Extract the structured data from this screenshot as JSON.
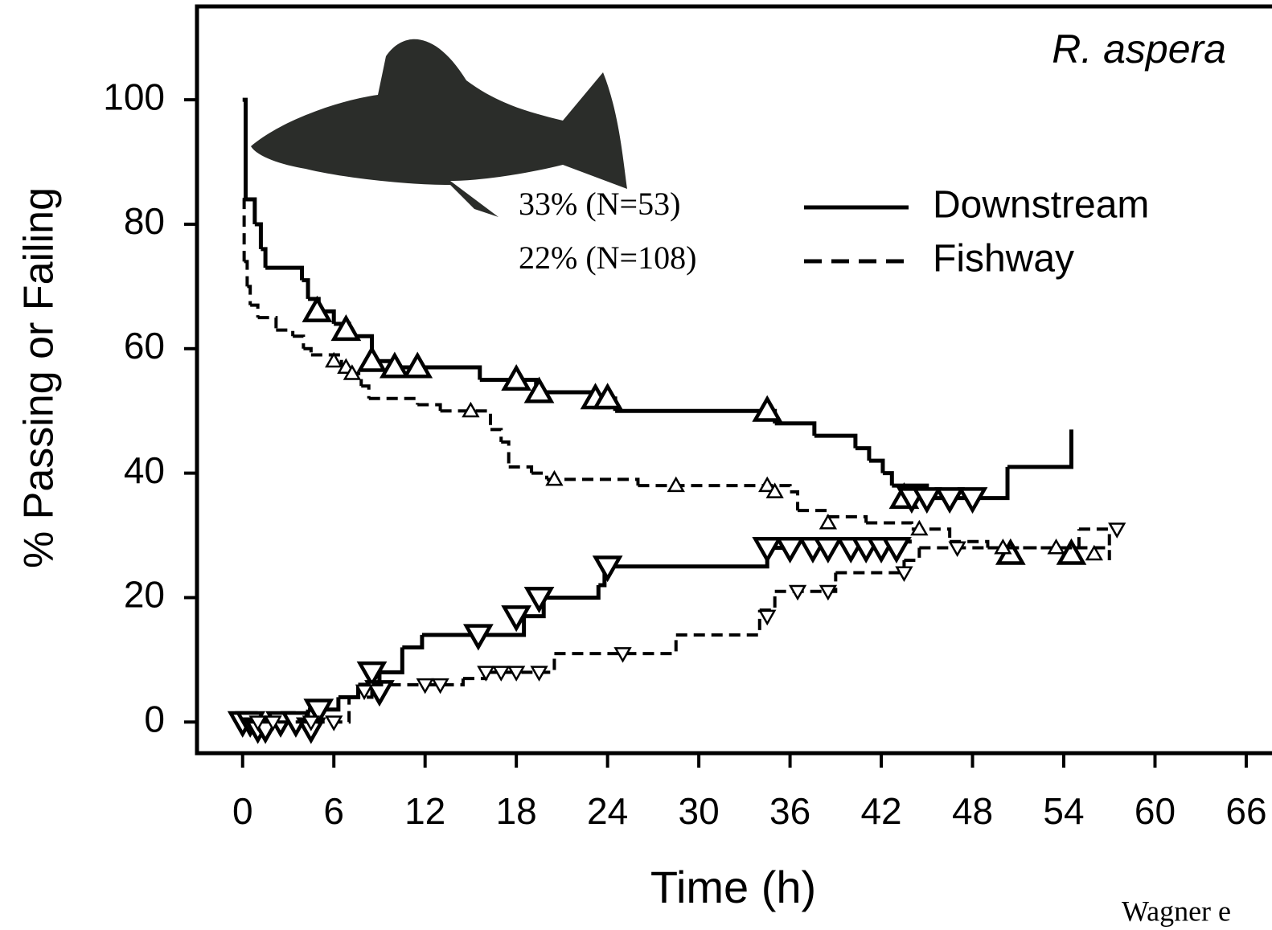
{
  "chart_data": {
    "type": "step",
    "x_label": "Time (h)",
    "y_label": "% Passing or Failing",
    "species": "R. aspera",
    "attribution": "Wagner e",
    "xlim": [
      -3,
      67.8
    ],
    "ylim": [
      -5,
      115
    ],
    "xticks": [
      0,
      6,
      12,
      18,
      24,
      30,
      36,
      42,
      48,
      54,
      60,
      66
    ],
    "yticks": [
      0,
      20,
      40,
      60,
      80,
      100
    ],
    "series": [
      {
        "name": "Downstream",
        "summary": "33% (N=53)",
        "color": "#000000",
        "dashed": false,
        "marker_size": 15,
        "passing": {
          "x": [
            0,
            0.2,
            0.8,
            1.2,
            1.5,
            3.9,
            4.3,
            5,
            6,
            7,
            8.5,
            10,
            15.6,
            19.3,
            23.2,
            24.5,
            35,
            37.6,
            40.3,
            41.2,
            42.1,
            42.7,
            45,
            50.3,
            54.5
          ],
          "values": [
            100,
            84,
            80,
            76,
            73,
            71,
            68,
            66,
            64,
            62,
            58,
            57,
            55,
            53,
            52,
            50,
            48,
            46,
            44,
            42,
            40,
            38,
            36,
            41,
            47
          ]
        },
        "failing": {
          "x": [
            0,
            4.3,
            6.3,
            7.6,
            9,
            10.5,
            11.8,
            18.5,
            19.8,
            23.4,
            23.8,
            34.5,
            35.5,
            44
          ],
          "values": [
            0,
            2,
            4,
            6,
            8,
            12,
            14,
            17,
            20,
            22,
            25,
            28,
            29,
            29
          ]
        },
        "censored_up": {
          "x": [
            4.9,
            6.8,
            8.5,
            10,
            11.5,
            18,
            19.5,
            23.2,
            24,
            34.5,
            43.5,
            50.5,
            54.5
          ],
          "values": [
            66,
            63,
            58,
            57,
            57,
            55,
            53,
            52,
            52,
            50,
            36,
            27,
            27
          ]
        },
        "censored_down": {
          "x": [
            0,
            0.5,
            1,
            1.5,
            2.5,
            3.5,
            4.5,
            5,
            8.5,
            9,
            15.5,
            18,
            19.5,
            24,
            34.5,
            36,
            37.5,
            38.5,
            40,
            41,
            42,
            43,
            44,
            45,
            46.5,
            48
          ],
          "values": [
            0,
            0,
            -1,
            -1,
            0,
            0,
            -1,
            2,
            8,
            5,
            14,
            17,
            20,
            25,
            28,
            28,
            28,
            28,
            28,
            28,
            28,
            28,
            36,
            36,
            36,
            36
          ]
        }
      },
      {
        "name": "Fishway",
        "summary": "22% (N=108)",
        "color": "#000000",
        "dashed": true,
        "marker_size": 9,
        "passing": {
          "x": [
            0,
            0.1,
            0.3,
            0.5,
            1,
            2.2,
            3.3,
            4,
            4.5,
            6.5,
            7,
            7.8,
            8.3,
            11.5,
            13,
            16.3,
            17,
            17.5,
            19,
            20,
            26,
            36,
            36.5,
            38.5,
            41,
            44,
            46.5,
            49,
            57
          ],
          "values": [
            84,
            74,
            70,
            67,
            65,
            63,
            62,
            60,
            59,
            57,
            56,
            54,
            52,
            51,
            50,
            47,
            45,
            41,
            40,
            39,
            38,
            37,
            34,
            33,
            32,
            31,
            29,
            28,
            26
          ]
        },
        "failing": {
          "x": [
            0,
            7,
            8.5,
            14.5,
            16,
            20.5,
            28.5,
            34,
            35,
            39,
            43.5,
            44.5,
            55,
            57
          ],
          "values": [
            0,
            4,
            6,
            7,
            8,
            11,
            14,
            18,
            21,
            24,
            26,
            28,
            31,
            28
          ]
        },
        "censored_up": {
          "x": [
            6,
            6.8,
            7.2,
            15,
            20.5,
            28.5,
            34.5,
            35,
            38.5,
            44.5,
            50,
            53.5,
            56
          ],
          "values": [
            58,
            57,
            56,
            50,
            39,
            38,
            38,
            37,
            32,
            31,
            28,
            28,
            27
          ]
        },
        "censored_down": {
          "x": [
            1,
            2,
            4.5,
            6,
            8,
            12,
            13,
            16,
            17,
            18,
            19.5,
            25,
            34.5,
            36.5,
            38.5,
            43.5,
            47,
            57.5
          ],
          "values": [
            0,
            0,
            0,
            0,
            5,
            6,
            6,
            8,
            8,
            8,
            8,
            11,
            17,
            21,
            21,
            24,
            28,
            31
          ]
        }
      }
    ]
  }
}
